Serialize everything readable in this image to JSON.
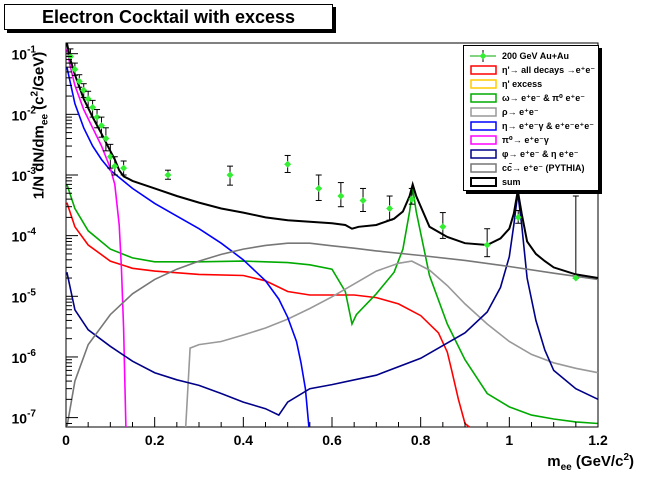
{
  "title": "Electron Cocktail with excess",
  "xlabel": "m_ee (GeV/c^2)",
  "ylabel": "1/N dN/dm_ee (c^2/GeV)",
  "xlabel_parts": {
    "main": "m",
    "sub": "ee",
    "unit": "(GeV/c",
    "sup": "2",
    "close": ")"
  },
  "ylabel_parts": {
    "main": "1/N dN/dm",
    "sub": "ee",
    "unit": "(c",
    "sup": "2",
    "close": "/GeV)"
  },
  "colors": {
    "data": "#33ee33",
    "eta_prime": "#ff0000",
    "eta_prime_excess": "#ffcc00",
    "omega": "#00aa00",
    "rho": "#999999",
    "eta": "#0000ff",
    "pi0": "#ff00ff",
    "phi": "#000088",
    "ccbar": "#777777",
    "sum": "#000000"
  },
  "chart_data": {
    "type": "line",
    "title": "Electron Cocktail with excess",
    "xlabel": "m_ee (GeV/c^2)",
    "ylabel": "1/N dN/dm_ee (c^2/GeV)",
    "xlim": [
      0,
      1.2
    ],
    "ylim": [
      7e-08,
      0.15
    ],
    "yscale": "log",
    "x_ticks": [
      {
        "v": 0,
        "label": "0"
      },
      {
        "v": 0.2,
        "label": "0.2"
      },
      {
        "v": 0.4,
        "label": "0.4"
      },
      {
        "v": 0.6,
        "label": "0.6"
      },
      {
        "v": 0.8,
        "label": "0.8"
      },
      {
        "v": 1.0,
        "label": "1"
      },
      {
        "v": 1.2,
        "label": "1.2"
      }
    ],
    "y_ticks": [
      {
        "v": 1e-07,
        "base": "10",
        "exp": "-7"
      },
      {
        "v": 1e-06,
        "base": "10",
        "exp": "-6"
      },
      {
        "v": 1e-05,
        "base": "10",
        "exp": "-5"
      },
      {
        "v": 0.0001,
        "base": "10",
        "exp": "-4"
      },
      {
        "v": 0.001,
        "base": "10",
        "exp": "-3"
      },
      {
        "v": 0.01,
        "base": "10",
        "exp": "-2"
      },
      {
        "v": 0.1,
        "base": "10",
        "exp": "-1"
      }
    ],
    "grid": false,
    "legend_position": "top-right",
    "points": {
      "name": "200 GeV Au+Au",
      "x": [
        0.01,
        0.02,
        0.03,
        0.04,
        0.05,
        0.06,
        0.07,
        0.08,
        0.09,
        0.1,
        0.11,
        0.13,
        0.23,
        0.37,
        0.5,
        0.57,
        0.62,
        0.67,
        0.73,
        0.78,
        0.85,
        0.95,
        1.02,
        1.15
      ],
      "y": [
        0.09,
        0.055,
        0.035,
        0.025,
        0.018,
        0.013,
        0.009,
        0.0065,
        0.004,
        0.002,
        0.0014,
        0.0013,
        0.001,
        0.001,
        0.0015,
        0.0006,
        0.00045,
        0.00038,
        0.00028,
        0.0004,
        0.00014,
        7e-05,
        0.0002,
        2e-05
      ],
      "err_lo": [
        0.07,
        0.044,
        0.028,
        0.019,
        0.013,
        0.009,
        0.006,
        0.0042,
        0.0025,
        0.0013,
        0.001,
        0.001,
        0.00085,
        0.00068,
        0.0011,
        0.00038,
        0.0003,
        0.00025,
        0.00018,
        0.00033,
        9e-05,
        4.5e-05,
        0.00016,
        1.98e-05
      ],
      "err_hi": [
        0.12,
        0.07,
        0.045,
        0.032,
        0.024,
        0.017,
        0.012,
        0.009,
        0.006,
        0.0032,
        0.002,
        0.0017,
        0.0012,
        0.0014,
        0.0021,
        0.001,
        0.00075,
        0.0006,
        0.00045,
        0.0006,
        0.00024,
        0.00013,
        0.00026,
        0.00045
      ]
    },
    "series": [
      {
        "name": "η'→ all decays →e⁺e⁻",
        "color": "#ff0000",
        "x": [
          0.002,
          0.02,
          0.05,
          0.1,
          0.15,
          0.2,
          0.3,
          0.4,
          0.45,
          0.5,
          0.55,
          0.6,
          0.65,
          0.7,
          0.75,
          0.8,
          0.84,
          0.86,
          0.87,
          0.885,
          0.9,
          0.91
        ],
        "y": [
          0.00035,
          0.00014,
          7e-05,
          3.8e-05,
          2.9e-05,
          2.6e-05,
          2.3e-05,
          2.2e-05,
          1.8e-05,
          1.2e-05,
          1.05e-05,
          1.05e-05,
          1.05e-05,
          9.5e-06,
          7.5e-06,
          4.8e-06,
          2.5e-06,
          1.2e-06,
          6e-07,
          2e-07,
          8e-08,
          7e-08
        ]
      },
      {
        "name": "η' excess",
        "color": "#ffcc00",
        "x": [],
        "y": []
      },
      {
        "name": "ω→ e⁺e⁻ & π⁰ e⁺e⁻",
        "color": "#00aa00",
        "x": [
          0.002,
          0.02,
          0.05,
          0.1,
          0.15,
          0.2,
          0.3,
          0.4,
          0.5,
          0.55,
          0.6,
          0.63,
          0.645,
          0.655,
          0.7,
          0.74,
          0.76,
          0.775,
          0.782,
          0.79,
          0.82,
          0.86,
          0.9,
          0.95,
          1.0,
          1.05,
          1.1,
          1.15,
          1.2
        ],
        "y": [
          0.0007,
          0.00028,
          0.00012,
          6e-05,
          4.3e-05,
          3.7e-05,
          3.7e-05,
          3.8e-05,
          3.6e-05,
          3.3e-05,
          2.8e-05,
          1.2e-05,
          3.5e-06,
          5e-06,
          1.1e-05,
          2.5e-05,
          6e-05,
          0.00025,
          0.0006,
          0.00025,
          2.2e-05,
          3.5e-06,
          9e-07,
          2.5e-07,
          1.5e-07,
          1.1e-07,
          9.5e-08,
          8.5e-08,
          8e-08
        ]
      },
      {
        "name": "ρ→ e⁺e⁻",
        "color": "#999999",
        "x": [
          0.27,
          0.28,
          0.3,
          0.35,
          0.4,
          0.45,
          0.5,
          0.55,
          0.6,
          0.65,
          0.7,
          0.75,
          0.78,
          0.82,
          0.86,
          0.9,
          0.95,
          1.0,
          1.05,
          1.1,
          1.15,
          1.2
        ],
        "y": [
          7e-08,
          1.4e-06,
          1.6e-06,
          1.8e-06,
          2.3e-06,
          3e-06,
          4.2e-06,
          6.3e-06,
          9.8e-06,
          1.6e-05,
          2.6e-05,
          3.5e-05,
          3.8e-05,
          2.7e-05,
          1.5e-05,
          7.5e-06,
          3.5e-06,
          1.8e-06,
          1.1e-06,
          8e-07,
          6.5e-07,
          5.5e-07
        ]
      },
      {
        "name": "η→ e⁺e⁻γ & e⁺e⁻e⁺e⁻",
        "color": "#0000ff",
        "x": [
          0.002,
          0.02,
          0.04,
          0.06,
          0.08,
          0.1,
          0.15,
          0.2,
          0.25,
          0.3,
          0.35,
          0.4,
          0.45,
          0.48,
          0.5,
          0.52,
          0.53,
          0.54,
          0.545,
          0.548
        ],
        "y": [
          0.06,
          0.015,
          0.006,
          0.003,
          0.0018,
          0.0012,
          0.0006,
          0.00034,
          0.00021,
          0.00013,
          7.5e-05,
          4e-05,
          1.8e-05,
          9e-06,
          4.5e-06,
          1.8e-06,
          8e-07,
          3e-07,
          1.2e-07,
          7e-08
        ]
      },
      {
        "name": "π⁰→ e⁺e⁻γ",
        "color": "#ff00ff",
        "x": [
          0.002,
          0.01,
          0.02,
          0.04,
          0.06,
          0.08,
          0.1,
          0.11,
          0.12,
          0.125,
          0.13,
          0.133,
          0.135
        ],
        "y": [
          0.12,
          0.06,
          0.03,
          0.012,
          0.006,
          0.003,
          0.0013,
          0.0007,
          0.00015,
          3e-05,
          3e-06,
          3e-07,
          7e-08
        ]
      },
      {
        "name": "φ→ e⁺e⁻ & η e⁺e⁻",
        "color": "#000088",
        "x": [
          0.002,
          0.02,
          0.05,
          0.1,
          0.15,
          0.2,
          0.25,
          0.3,
          0.35,
          0.4,
          0.45,
          0.48,
          0.5,
          0.55,
          0.6,
          0.7,
          0.8,
          0.9,
          0.95,
          0.98,
          1.0,
          1.01,
          1.019,
          1.028,
          1.04,
          1.06,
          1.08,
          1.1,
          1.15,
          1.2
        ],
        "y": [
          2.5e-05,
          6e-06,
          2.8e-06,
          1.5e-06,
          8.5e-07,
          5.5e-07,
          4.2e-07,
          3.4e-07,
          2.5e-07,
          1.8e-07,
          1.4e-07,
          1.1e-07,
          1.8e-07,
          3e-07,
          3.5e-07,
          5e-07,
          9.5e-07,
          2.5e-06,
          5.5e-06,
          1.4e-05,
          4.5e-05,
          0.00015,
          0.0005,
          0.00015,
          2e-05,
          4e-06,
          1.3e-06,
          6e-07,
          3e-07,
          2e-07
        ]
      },
      {
        "name": "cc̄→ e⁺e⁻ (PYTHIA)",
        "color": "#777777",
        "x": [
          0.002,
          0.02,
          0.05,
          0.1,
          0.15,
          0.2,
          0.25,
          0.3,
          0.35,
          0.4,
          0.45,
          0.5,
          0.55,
          0.6,
          0.65,
          0.7,
          0.8,
          0.9,
          1.0,
          1.1,
          1.2
        ],
        "y": [
          7e-08,
          4e-07,
          1.6e-06,
          5e-06,
          1.1e-05,
          1.9e-05,
          2.8e-05,
          3.8e-05,
          4.9e-05,
          6e-05,
          6.9e-05,
          7.5e-05,
          7.5e-05,
          6.8e-05,
          6.2e-05,
          5.6e-05,
          4.7e-05,
          3.9e-05,
          3.1e-05,
          2.4e-05,
          1.9e-05
        ]
      },
      {
        "name": "sum",
        "color": "#000000",
        "x": [
          0.002,
          0.01,
          0.02,
          0.04,
          0.06,
          0.08,
          0.1,
          0.11,
          0.12,
          0.13,
          0.15,
          0.2,
          0.25,
          0.3,
          0.35,
          0.4,
          0.45,
          0.5,
          0.55,
          0.6,
          0.63,
          0.645,
          0.66,
          0.7,
          0.74,
          0.76,
          0.775,
          0.782,
          0.79,
          0.82,
          0.86,
          0.9,
          0.95,
          0.98,
          1.0,
          1.01,
          1.019,
          1.028,
          1.04,
          1.06,
          1.08,
          1.1,
          1.15,
          1.2
        ],
        "y": [
          0.15,
          0.08,
          0.045,
          0.018,
          0.009,
          0.0048,
          0.0025,
          0.0018,
          0.0012,
          0.00095,
          0.0008,
          0.0006,
          0.00045,
          0.00035,
          0.00028,
          0.00024,
          0.0002,
          0.00018,
          0.00017,
          0.00016,
          0.00015,
          0.00013,
          0.00014,
          0.00015,
          0.00019,
          0.00025,
          0.00045,
          0.0007,
          0.00045,
          0.00014,
          9.5e-05,
          7.5e-05,
          7e-05,
          9e-05,
          0.00013,
          0.00023,
          0.00055,
          0.00023,
          8e-05,
          5e-05,
          3.8e-05,
          3e-05,
          2.3e-05,
          2e-05
        ]
      }
    ]
  }
}
